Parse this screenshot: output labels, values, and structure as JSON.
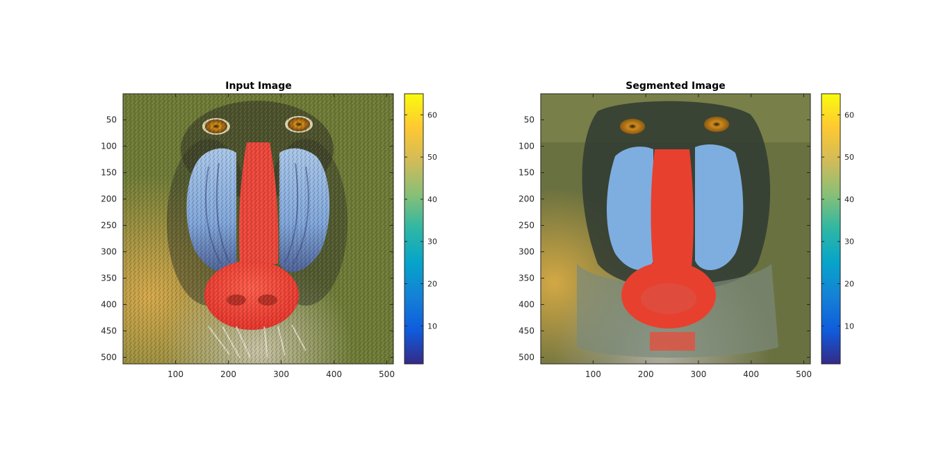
{
  "colorbar_colors": [
    "#352a87",
    "#0f5cdd",
    "#1481d6",
    "#06a4ca",
    "#2eb7a4",
    "#87bf77",
    "#d1bb59",
    "#fec832",
    "#f9fb0e"
  ],
  "chart_data": [
    {
      "type": "image",
      "title": "Input Image",
      "xlim": [
        0.5,
        512.5
      ],
      "ylim": [
        0.5,
        512.5
      ],
      "y_reversed": true,
      "xticks": [
        100,
        200,
        300,
        400,
        500
      ],
      "yticks": [
        50,
        100,
        150,
        200,
        250,
        300,
        350,
        400,
        450,
        500
      ],
      "colorbar": {
        "clim": [
          1,
          65
        ],
        "ticks": [
          10,
          20,
          30,
          40,
          50,
          60
        ]
      }
    },
    {
      "type": "image",
      "title": "Segmented Image",
      "xlim": [
        0.5,
        512.5
      ],
      "ylim": [
        0.5,
        512.5
      ],
      "y_reversed": true,
      "xticks": [
        100,
        200,
        300,
        400,
        500
      ],
      "yticks": [
        50,
        100,
        150,
        200,
        250,
        300,
        350,
        400,
        450,
        500
      ],
      "colorbar": {
        "clim": [
          1,
          65
        ],
        "ticks": [
          10,
          20,
          30,
          40,
          50,
          60
        ]
      }
    }
  ]
}
